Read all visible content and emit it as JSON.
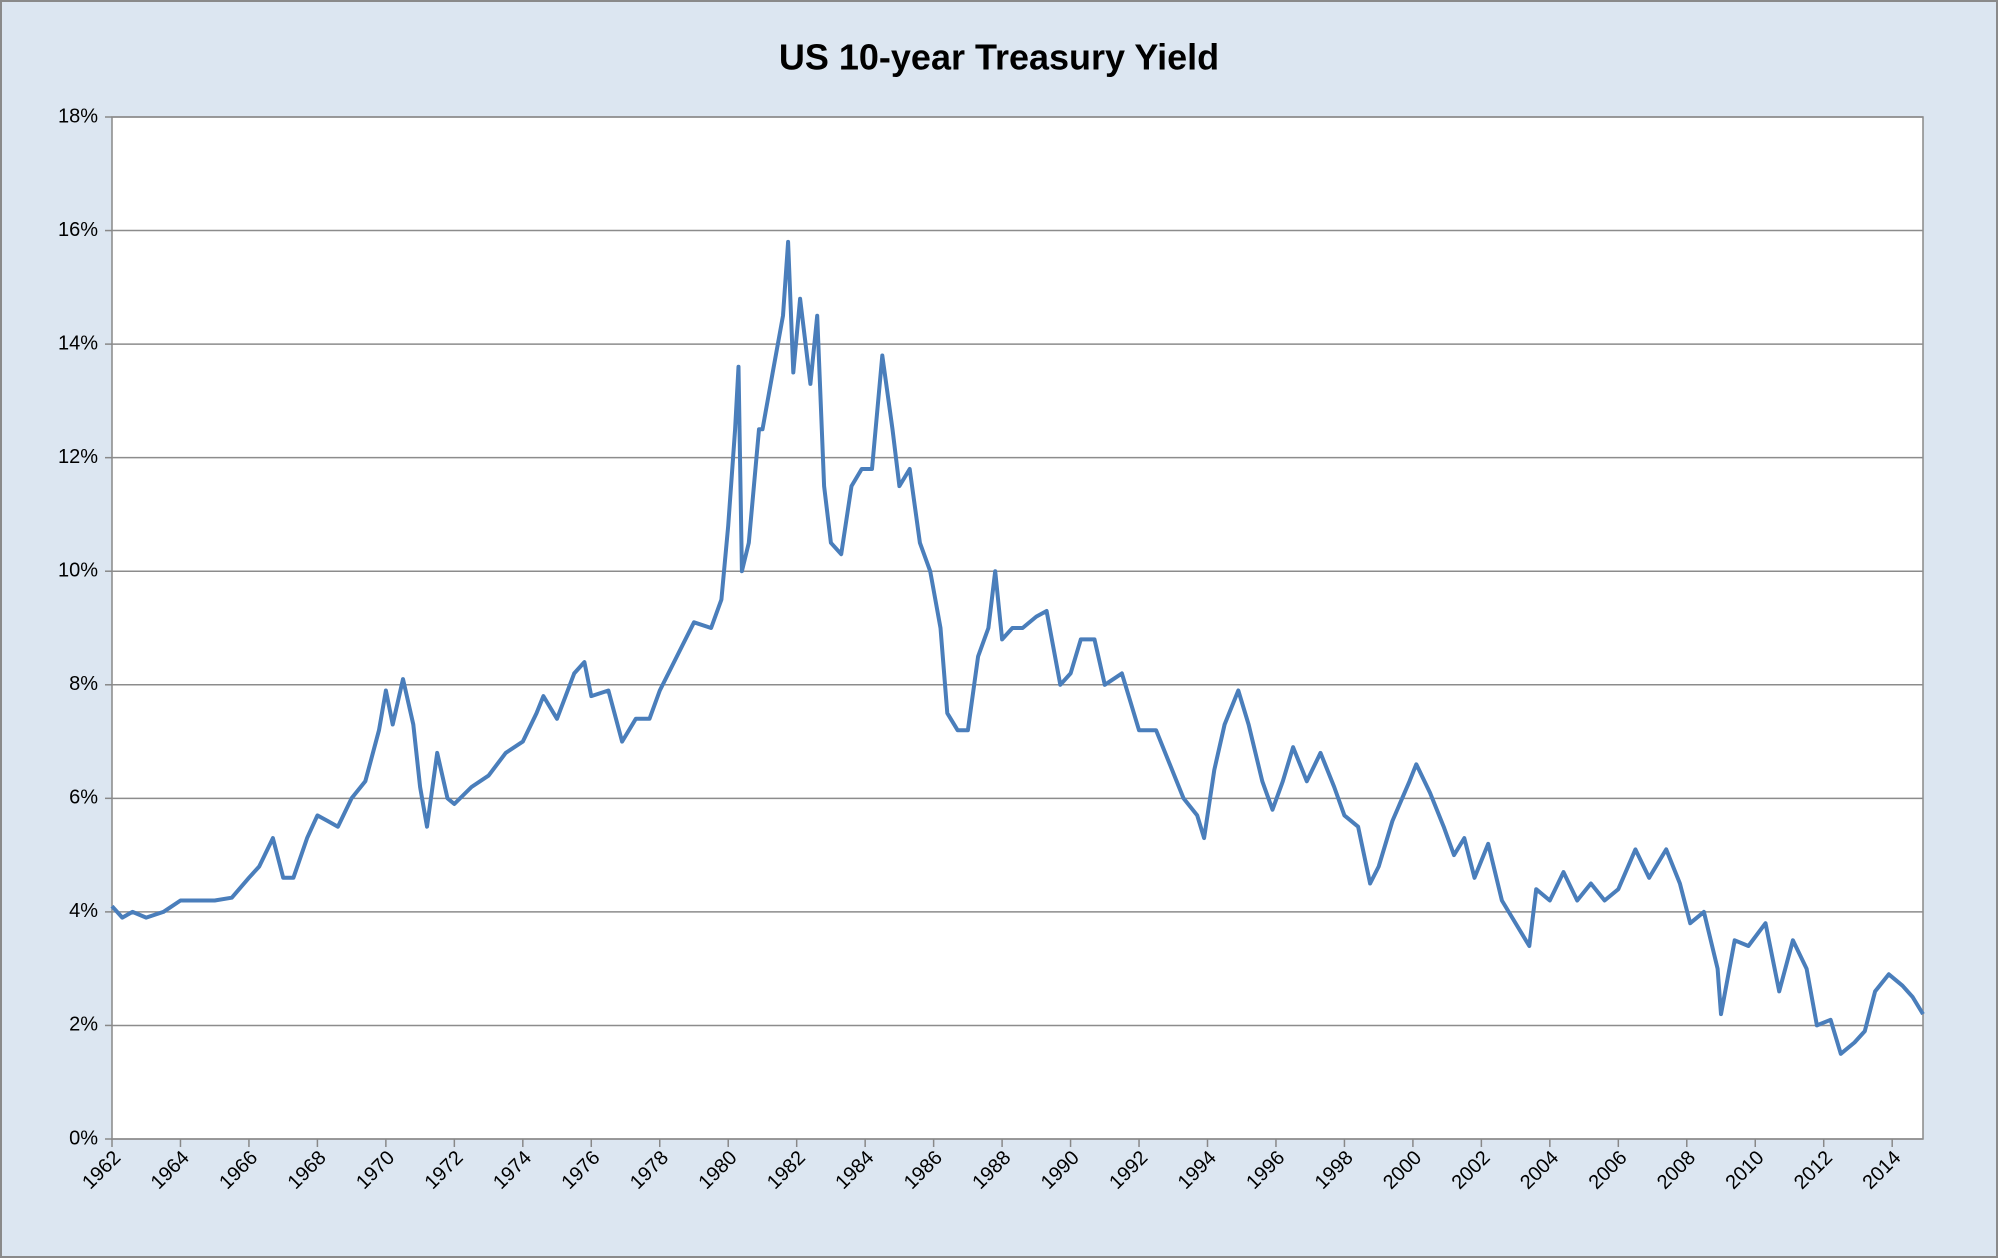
{
  "chart_data": {
    "type": "line",
    "title": "US 10-year Treasury Yield",
    "x": [
      1962.0,
      1962.3,
      1962.6,
      1963.0,
      1963.5,
      1964.0,
      1964.5,
      1965.0,
      1965.5,
      1966.0,
      1966.3,
      1966.7,
      1967.0,
      1967.3,
      1967.7,
      1968.0,
      1968.3,
      1968.6,
      1969.0,
      1969.4,
      1969.8,
      1970.0,
      1970.2,
      1970.5,
      1970.8,
      1971.0,
      1971.2,
      1971.5,
      1971.8,
      1972.0,
      1972.5,
      1973.0,
      1973.5,
      1974.0,
      1974.4,
      1974.6,
      1975.0,
      1975.5,
      1975.8,
      1976.0,
      1976.5,
      1976.9,
      1977.3,
      1977.7,
      1978.0,
      1978.5,
      1979.0,
      1979.5,
      1979.8,
      1980.0,
      1980.2,
      1980.3,
      1980.4,
      1980.6,
      1980.9,
      1981.0,
      1981.3,
      1981.6,
      1981.75,
      1981.9,
      1982.1,
      1982.4,
      1982.6,
      1982.8,
      1983.0,
      1983.3,
      1983.6,
      1983.9,
      1984.2,
      1984.5,
      1984.8,
      1985.0,
      1985.3,
      1985.6,
      1985.9,
      1986.2,
      1986.4,
      1986.7,
      1987.0,
      1987.3,
      1987.6,
      1987.8,
      1988.0,
      1988.3,
      1988.6,
      1989.0,
      1989.3,
      1989.7,
      1990.0,
      1990.3,
      1990.7,
      1991.0,
      1991.5,
      1992.0,
      1992.5,
      1992.9,
      1993.3,
      1993.7,
      1993.9,
      1994.2,
      1994.5,
      1994.9,
      1995.2,
      1995.6,
      1995.9,
      1996.2,
      1996.5,
      1996.9,
      1997.3,
      1997.7,
      1998.0,
      1998.4,
      1998.75,
      1999.0,
      1999.4,
      1999.9,
      2000.1,
      2000.5,
      2000.9,
      2001.2,
      2001.5,
      2001.8,
      2002.2,
      2002.6,
      2002.9,
      2003.4,
      2003.6,
      2004.0,
      2004.4,
      2004.8,
      2005.2,
      2005.6,
      2006.0,
      2006.5,
      2006.9,
      2007.4,
      2007.8,
      2008.1,
      2008.5,
      2008.9,
      2009.0,
      2009.4,
      2009.8,
      2010.3,
      2010.7,
      2011.1,
      2011.5,
      2011.8,
      2012.2,
      2012.5,
      2012.9,
      2013.2,
      2013.5,
      2013.9,
      2014.3,
      2014.6,
      2014.9
    ],
    "series": [
      {
        "color": "#4a7ebb",
        "values": [
          4.1,
          3.9,
          4.0,
          3.9,
          4.0,
          4.2,
          4.2,
          4.2,
          4.25,
          4.6,
          4.8,
          5.3,
          4.6,
          4.6,
          5.3,
          5.7,
          5.6,
          5.5,
          6.0,
          6.3,
          7.2,
          7.9,
          7.3,
          8.1,
          7.3,
          6.2,
          5.5,
          6.8,
          6.0,
          5.9,
          6.2,
          6.4,
          6.8,
          7.0,
          7.5,
          7.8,
          7.4,
          8.2,
          8.4,
          7.8,
          7.9,
          7.0,
          7.4,
          7.4,
          7.9,
          8.5,
          9.1,
          9.0,
          9.5,
          10.8,
          12.5,
          13.6,
          10.0,
          10.5,
          12.5,
          12.5,
          13.5,
          14.5,
          15.8,
          13.5,
          14.8,
          13.3,
          14.5,
          11.5,
          10.5,
          10.3,
          11.5,
          11.8,
          11.8,
          13.8,
          12.5,
          11.5,
          11.8,
          10.5,
          10.0,
          9.0,
          7.5,
          7.2,
          7.2,
          8.5,
          9.0,
          10.0,
          8.8,
          9.0,
          9.0,
          9.2,
          9.3,
          8.0,
          8.2,
          8.8,
          8.8,
          8.0,
          8.2,
          7.2,
          7.2,
          6.6,
          6.0,
          5.7,
          5.3,
          6.5,
          7.3,
          7.9,
          7.3,
          6.3,
          5.8,
          6.3,
          6.9,
          6.3,
          6.8,
          6.2,
          5.7,
          5.5,
          4.5,
          4.8,
          5.6,
          6.3,
          6.6,
          6.1,
          5.5,
          5.0,
          5.3,
          4.6,
          5.2,
          4.2,
          3.9,
          3.4,
          4.4,
          4.2,
          4.7,
          4.2,
          4.5,
          4.2,
          4.4,
          5.1,
          4.6,
          5.1,
          4.5,
          3.8,
          4.0,
          3.0,
          2.2,
          3.5,
          3.4,
          3.8,
          2.6,
          3.5,
          3.0,
          2.0,
          2.1,
          1.5,
          1.7,
          1.9,
          2.6,
          2.9,
          2.7,
          2.5,
          2.2
        ]
      }
    ],
    "xlim": [
      1962,
      2014.9
    ],
    "xticks": [
      1962,
      1964,
      1966,
      1968,
      1970,
      1972,
      1974,
      1976,
      1978,
      1980,
      1982,
      1984,
      1986,
      1988,
      1990,
      1992,
      1994,
      1996,
      1998,
      2000,
      2002,
      2004,
      2006,
      2008,
      2010,
      2012,
      2014
    ],
    "ylim": [
      0,
      18
    ],
    "yticks": [
      {
        "value": 0,
        "label": "0%"
      },
      {
        "value": 2,
        "label": "2%"
      },
      {
        "value": 4,
        "label": "4%"
      },
      {
        "value": 6,
        "label": "6%"
      },
      {
        "value": 8,
        "label": "8%"
      },
      {
        "value": 10,
        "label": "10%"
      },
      {
        "value": 12,
        "label": "12%"
      },
      {
        "value": 14,
        "label": "14%"
      },
      {
        "value": 16,
        "label": "16%"
      },
      {
        "value": 18,
        "label": "18%"
      }
    ],
    "grid": true
  }
}
